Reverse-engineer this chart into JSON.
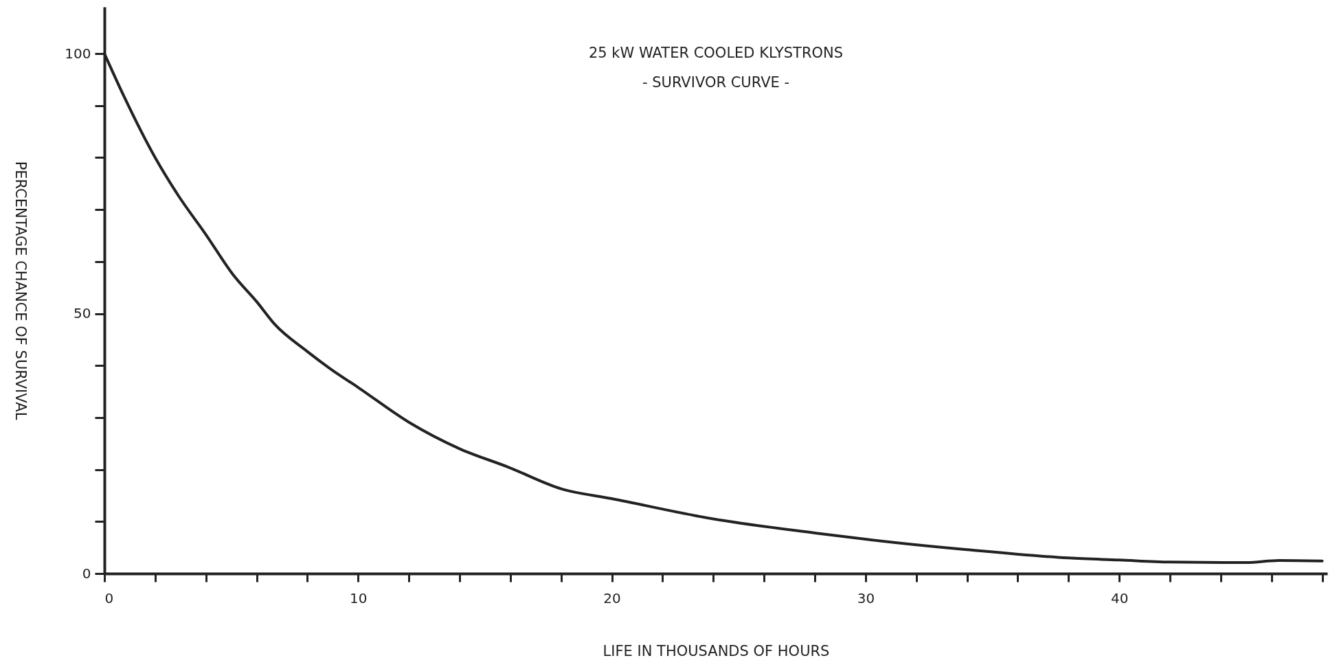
{
  "chart_data": {
    "type": "line",
    "title": "25 kW WATER COOLED KLYSTRONS",
    "subtitle": "- SURVIVOR CURVE -",
    "xlabel": "LIFE IN THOUSANDS OF HOURS",
    "ylabel": "PERCENTAGE CHANCE OF SURVIVAL",
    "x": [
      0,
      0.75,
      2,
      2.9,
      4,
      5.1,
      6,
      6.7,
      8,
      8.9,
      10,
      12,
      14,
      15.9,
      18,
      20,
      24,
      28,
      30,
      34,
      38,
      40,
      42,
      45,
      46.3,
      48
    ],
    "series": [
      {
        "color": "#222222",
        "values": [
          100,
          92,
          80,
          72.8,
          65.2,
          57.3,
          52.3,
          48,
          42.7,
          39.4,
          35.8,
          29.1,
          24,
          20.5,
          16.3,
          14.4,
          10.5,
          7.8,
          6.6,
          4.6,
          3,
          2.6,
          2.2,
          2.1,
          2.5,
          2.4
        ]
      }
    ],
    "xlim": [
      0,
      48.2
    ],
    "ylim": [
      0,
      109
    ],
    "xticks": [
      0,
      {
        "value": 2,
        "label": null
      },
      {
        "value": 4,
        "label": null
      },
      {
        "value": 6,
        "label": null
      },
      {
        "value": 8,
        "label": null
      },
      10,
      {
        "value": 12,
        "label": null
      },
      {
        "value": 14,
        "label": null
      },
      {
        "value": 16,
        "label": null
      },
      {
        "value": 18,
        "label": null
      },
      20,
      {
        "value": 22,
        "label": null
      },
      {
        "value": 24,
        "label": null
      },
      {
        "value": 26,
        "label": null
      },
      {
        "value": 28,
        "label": null
      },
      30,
      {
        "value": 32,
        "label": null
      },
      {
        "value": 34,
        "label": null
      },
      {
        "value": 36,
        "label": null
      },
      {
        "value": 38,
        "label": null
      },
      40,
      {
        "value": 42,
        "label": null
      },
      {
        "value": 44,
        "label": null
      },
      {
        "value": 46,
        "label": null
      },
      {
        "value": 48,
        "label": null
      }
    ],
    "yticks": [
      0,
      {
        "value": 10,
        "label": null
      },
      {
        "value": 20,
        "label": null
      },
      {
        "value": 30,
        "label": null
      },
      {
        "value": 40,
        "label": null
      },
      50,
      {
        "value": 60,
        "label": null
      },
      {
        "value": 70,
        "label": null
      },
      {
        "value": 80,
        "label": null
      },
      {
        "value": 90,
        "label": null
      },
      100
    ],
    "grid": false,
    "legend": false
  }
}
